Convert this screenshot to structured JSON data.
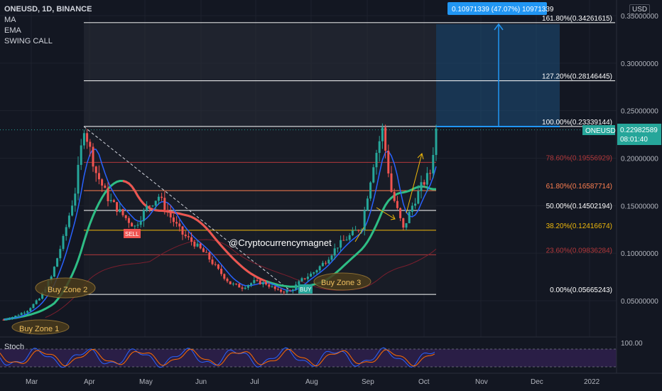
{
  "header": {
    "symbol_line": "ONEUSD, 1D, BINANCE",
    "indicators": [
      "MA",
      "EMA",
      "SWING CALL"
    ],
    "currency": "USD",
    "stoch_label": "Stoch"
  },
  "measure_tooltip": "0.10971339 (47.07%) 10971339",
  "price_tag": {
    "symbol": "ONEUSD",
    "price": "0.22982589",
    "countdown": "08:01:40"
  },
  "watermark": "@Cryptocurrencymagnet",
  "buy_zones": [
    "Buy Zone 1",
    "Buy Zone 2",
    "Buy Zone 3"
  ],
  "signal_tags": [
    "SELL",
    "BUY"
  ],
  "chart_data": {
    "type": "candlestick",
    "y_ticks": [
      "0.35000000",
      "0.30000000",
      "0.25000000",
      "0.20000000",
      "0.15000000",
      "0.10000000",
      "0.05000000"
    ],
    "y_tick_values": [
      0.35,
      0.3,
      0.25,
      0.2,
      0.15,
      0.1,
      0.05
    ],
    "ylim": [
      0.015,
      0.37
    ],
    "x_ticks": [
      "Mar",
      "Apr",
      "May",
      "Jun",
      "Jul",
      "Aug",
      "Sep",
      "Oct",
      "Nov",
      "Dec",
      "2022"
    ],
    "stoch_ticks": [
      "100.00"
    ],
    "fib_levels": [
      {
        "label": "161.80%(0.34261615)",
        "value": 0.34261615,
        "color": "#ffffff"
      },
      {
        "label": "127.20%(0.28146445)",
        "value": 0.28146445,
        "color": "#ffffff"
      },
      {
        "label": "100.00%(0.23339144)",
        "value": 0.23339144,
        "color": "#ffffff"
      },
      {
        "label": "78.60%(0.19556929)",
        "value": 0.19556929,
        "color": "#b2383b"
      },
      {
        "label": "61.80%(0.16587714)",
        "value": 0.16587714,
        "color": "#ff7f50"
      },
      {
        "label": "50.00%(0.14502194)",
        "value": 0.14502194,
        "color": "#ffffff"
      },
      {
        "label": "38.20%(0.12416674)",
        "value": 0.12416674,
        "color": "#f0b90b"
      },
      {
        "label": "23.60%(0.09836284)",
        "value": 0.09836284,
        "color": "#b2383b"
      },
      {
        "label": "0.00%(0.05665243)",
        "value": 0.05665243,
        "color": "#ffffff"
      }
    ],
    "price_path": [
      [
        0,
        0.03
      ],
      [
        4,
        0.034
      ],
      [
        8,
        0.04
      ],
      [
        12,
        0.052
      ],
      [
        16,
        0.075
      ],
      [
        20,
        0.115
      ],
      [
        24,
        0.165
      ],
      [
        27,
        0.233
      ],
      [
        31,
        0.185
      ],
      [
        35,
        0.158
      ],
      [
        40,
        0.14
      ],
      [
        44,
        0.128
      ],
      [
        48,
        0.148
      ],
      [
        52,
        0.16
      ],
      [
        56,
        0.138
      ],
      [
        60,
        0.12
      ],
      [
        64,
        0.11
      ],
      [
        68,
        0.098
      ],
      [
        72,
        0.082
      ],
      [
        76,
        0.068
      ],
      [
        80,
        0.064
      ],
      [
        84,
        0.07
      ],
      [
        88,
        0.068
      ],
      [
        92,
        0.06
      ],
      [
        96,
        0.06
      ],
      [
        100,
        0.072
      ],
      [
        104,
        0.08
      ],
      [
        108,
        0.092
      ],
      [
        112,
        0.108
      ],
      [
        116,
        0.118
      ],
      [
        120,
        0.128
      ],
      [
        124,
        0.195
      ],
      [
        127,
        0.23
      ],
      [
        130,
        0.165
      ],
      [
        134,
        0.125
      ],
      [
        137,
        0.15
      ],
      [
        140,
        0.17
      ],
      [
        143,
        0.185
      ],
      [
        145,
        0.23
      ]
    ],
    "last_price": 0.22982589
  }
}
